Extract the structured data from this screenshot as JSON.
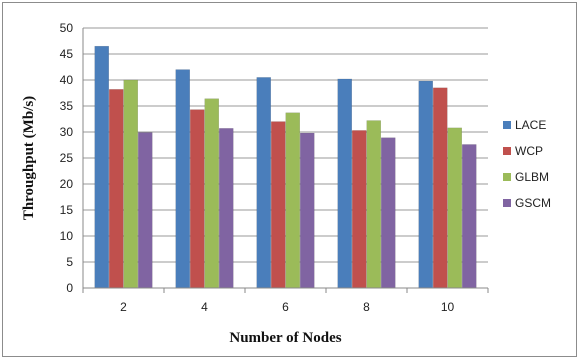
{
  "chart_data": {
    "type": "bar",
    "title": "",
    "xlabel": "Number of Nodes",
    "ylabel": "Throughput (Mb/s)",
    "categories": [
      "2",
      "4",
      "6",
      "8",
      "10"
    ],
    "ylim": [
      0,
      50
    ],
    "yticks": [
      0,
      5,
      10,
      15,
      20,
      25,
      30,
      35,
      40,
      45,
      50
    ],
    "grid": true,
    "legend_position": "right",
    "series": [
      {
        "name": "LACE",
        "color": "#4a7ebb",
        "values": [
          46.5,
          42,
          40.5,
          40.2,
          39.8
        ]
      },
      {
        "name": "WCP",
        "color": "#c0504d",
        "values": [
          38.2,
          34.3,
          32,
          30.3,
          38.5
        ]
      },
      {
        "name": "GLBM",
        "color": "#9bbb59",
        "values": [
          40,
          36.4,
          33.7,
          32.2,
          30.8
        ]
      },
      {
        "name": "GSCM",
        "color": "#8064a2",
        "values": [
          29.9,
          30.7,
          29.8,
          28.9,
          27.6
        ]
      }
    ]
  }
}
